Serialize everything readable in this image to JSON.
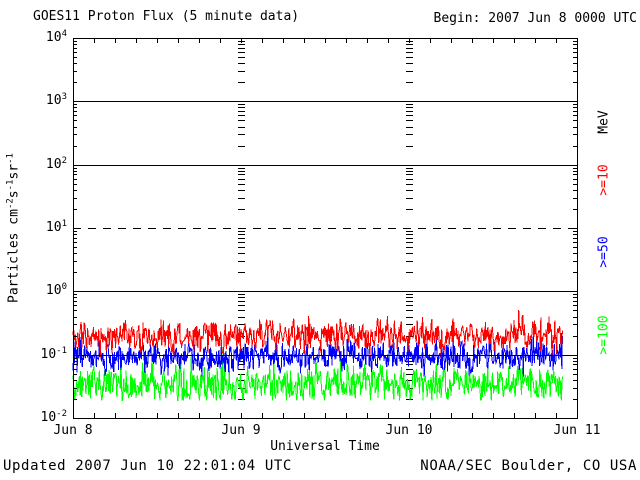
{
  "header": {
    "begin": "Begin: 2007 Jun 8 0000 UTC"
  },
  "footer": {
    "updated": "Updated 2007 Jun 10 22:01:04 UTC",
    "source": "NOAA/SEC Boulder, CO USA"
  },
  "colors": {
    "background": "#ffffff",
    "axis": "#000000",
    "ge10": "#ff0000",
    "ge50": "#0000ff",
    "ge100": "#00ff00"
  },
  "chart_data": {
    "type": "line",
    "title": "GOES11 Proton Flux (5 minute data)",
    "xlabel": "Universal Time",
    "ylabel_parts": [
      {
        "text": "Particles cm"
      },
      {
        "sup": "-2"
      },
      {
        "text": "s"
      },
      {
        "sup": "-1"
      },
      {
        "text": "sr"
      },
      {
        "sup": "-1"
      }
    ],
    "y_scale": "log",
    "y_range": [
      0.01,
      10000
    ],
    "y_ticks": [
      {
        "base": "10",
        "exp": "4"
      },
      {
        "base": "10",
        "exp": "3"
      },
      {
        "base": "10",
        "exp": "2"
      },
      {
        "base": "10",
        "exp": "1"
      },
      {
        "base": "10",
        "exp": "0"
      },
      {
        "base": "10",
        "exp": "-1"
      },
      {
        "base": "10",
        "exp": "-2"
      }
    ],
    "solid_gridlines": [
      1000,
      100,
      1,
      0.1
    ],
    "dashed_gridlines": [
      10
    ],
    "x_ticks": [
      "Jun 8",
      "Jun 9",
      "Jun 10",
      "Jun 11"
    ],
    "x_range_days": 3,
    "x_minor_tick_hours": 3,
    "day_boundary_gridlines": [
      "Jun 9",
      "Jun 10"
    ],
    "cadence": "5 minute",
    "begin_time": "2007 Jun 8 0000 UTC",
    "data_end_fraction": 0.972,
    "right_axis_unit": "MeV",
    "series": [
      {
        "name": ">=10",
        "unit": "MeV",
        "color": "#ff0000",
        "approx_median": 0.2,
        "approx_min": 0.09,
        "approx_max": 0.55,
        "noise_dex": 0.17,
        "seed": 11
      },
      {
        "name": ">=50",
        "unit": "MeV",
        "color": "#0000ff",
        "approx_median": 0.095,
        "approx_min": 0.045,
        "approx_max": 0.24,
        "noise_dex": 0.17,
        "seed": 52
      },
      {
        "name": ">=100",
        "unit": "MeV",
        "color": "#00ff00",
        "approx_median": 0.035,
        "approx_min": 0.019,
        "approx_max": 0.12,
        "noise_dex": 0.2,
        "seed": 103
      }
    ]
  }
}
